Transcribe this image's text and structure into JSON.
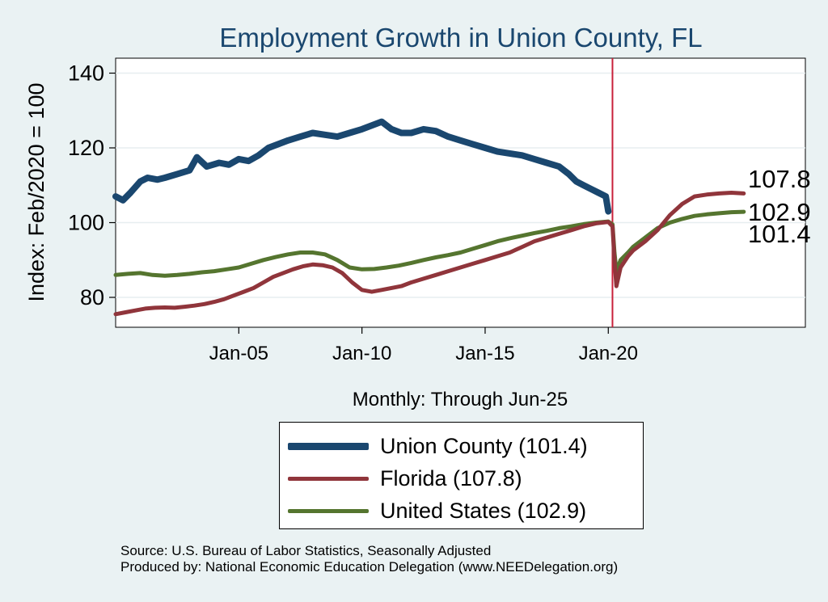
{
  "chart_data": {
    "type": "line",
    "title": "Employment Growth in Union  County, FL",
    "xlabel": "Monthly: Through Jun-25",
    "ylabel": "Index: Feb/2020 = 100",
    "xlim": [
      2000.0,
      2028.0
    ],
    "ylim": [
      72,
      144
    ],
    "xticks": [
      {
        "x": 2005.0,
        "label": "Jan-05"
      },
      {
        "x": 2010.0,
        "label": "Jan-10"
      },
      {
        "x": 2015.0,
        "label": "Jan-15"
      },
      {
        "x": 2020.0,
        "label": "Jan-20"
      }
    ],
    "yticks": [
      80,
      100,
      120,
      140
    ],
    "grid": true,
    "reference_line": {
      "x": 2020.17,
      "color": "#c8203a"
    },
    "series": [
      {
        "name": "Union  County",
        "legend_label": "Union  County (101.4)",
        "end_label": "101.4",
        "color": "#1a476f",
        "width": 8,
        "points": [
          [
            2000.0,
            107
          ],
          [
            2000.3,
            106
          ],
          [
            2000.6,
            108
          ],
          [
            2001.0,
            111
          ],
          [
            2001.3,
            112
          ],
          [
            2001.7,
            111.5
          ],
          [
            2002.0,
            112
          ],
          [
            2002.5,
            113
          ],
          [
            2003.0,
            114
          ],
          [
            2003.3,
            117.5
          ],
          [
            2003.7,
            115
          ],
          [
            2004.2,
            116
          ],
          [
            2004.6,
            115.5
          ],
          [
            2005.0,
            117
          ],
          [
            2005.4,
            116.5
          ],
          [
            2005.8,
            118
          ],
          [
            2006.2,
            120
          ],
          [
            2006.6,
            121
          ],
          [
            2007.0,
            122
          ],
          [
            2007.5,
            123
          ],
          [
            2008.0,
            124
          ],
          [
            2008.5,
            123.5
          ],
          [
            2009.0,
            123
          ],
          [
            2009.5,
            124
          ],
          [
            2010.0,
            125
          ],
          [
            2010.4,
            126
          ],
          [
            2010.8,
            127
          ],
          [
            2011.2,
            125
          ],
          [
            2011.6,
            124
          ],
          [
            2012.0,
            124
          ],
          [
            2012.5,
            125
          ],
          [
            2013.0,
            124.5
          ],
          [
            2013.5,
            123
          ],
          [
            2014.0,
            122
          ],
          [
            2014.5,
            121
          ],
          [
            2015.0,
            120
          ],
          [
            2015.5,
            119
          ],
          [
            2016.0,
            118.5
          ],
          [
            2016.5,
            118
          ],
          [
            2017.0,
            117
          ],
          [
            2017.5,
            116
          ],
          [
            2018.0,
            115
          ],
          [
            2018.4,
            113
          ],
          [
            2018.7,
            111
          ],
          [
            2019.0,
            110
          ],
          [
            2019.3,
            109
          ],
          [
            2019.6,
            108
          ],
          [
            2019.9,
            107
          ],
          [
            2020.0,
            103
          ]
        ],
        "end_value": 101.4
      },
      {
        "name": "Florida",
        "legend_label": "Florida (107.8)",
        "end_label": "107.8",
        "color": "#90353b",
        "width": 5,
        "points": [
          [
            2000.0,
            75.5
          ],
          [
            2000.4,
            76
          ],
          [
            2000.8,
            76.5
          ],
          [
            2001.2,
            77
          ],
          [
            2001.6,
            77.2
          ],
          [
            2002.0,
            77.3
          ],
          [
            2002.4,
            77.2
          ],
          [
            2002.8,
            77.5
          ],
          [
            2003.2,
            77.8
          ],
          [
            2003.6,
            78.2
          ],
          [
            2004.0,
            78.8
          ],
          [
            2004.4,
            79.5
          ],
          [
            2004.8,
            80.5
          ],
          [
            2005.2,
            81.5
          ],
          [
            2005.6,
            82.5
          ],
          [
            2006.0,
            84
          ],
          [
            2006.4,
            85.5
          ],
          [
            2006.8,
            86.5
          ],
          [
            2007.2,
            87.5
          ],
          [
            2007.6,
            88.3
          ],
          [
            2008.0,
            88.8
          ],
          [
            2008.4,
            88.6
          ],
          [
            2008.8,
            88
          ],
          [
            2009.2,
            86.5
          ],
          [
            2009.6,
            84
          ],
          [
            2010.0,
            82
          ],
          [
            2010.4,
            81.5
          ],
          [
            2010.8,
            82
          ],
          [
            2011.2,
            82.5
          ],
          [
            2011.6,
            83
          ],
          [
            2012.0,
            84
          ],
          [
            2012.5,
            85
          ],
          [
            2013.0,
            86
          ],
          [
            2013.5,
            87
          ],
          [
            2014.0,
            88
          ],
          [
            2014.5,
            89
          ],
          [
            2015.0,
            90
          ],
          [
            2015.5,
            91
          ],
          [
            2016.0,
            92
          ],
          [
            2016.5,
            93.5
          ],
          [
            2017.0,
            95
          ],
          [
            2017.5,
            96
          ],
          [
            2018.0,
            97
          ],
          [
            2018.5,
            98
          ],
          [
            2019.0,
            99
          ],
          [
            2019.5,
            99.8
          ],
          [
            2020.0,
            100.2
          ],
          [
            2020.17,
            99
          ],
          [
            2020.25,
            90
          ],
          [
            2020.33,
            83
          ],
          [
            2020.5,
            88
          ],
          [
            2020.8,
            91
          ],
          [
            2021.0,
            92.5
          ],
          [
            2021.5,
            95
          ],
          [
            2022.0,
            98
          ],
          [
            2022.5,
            102
          ],
          [
            2023.0,
            105
          ],
          [
            2023.5,
            107
          ],
          [
            2024.0,
            107.5
          ],
          [
            2024.5,
            107.8
          ],
          [
            2025.0,
            108
          ],
          [
            2025.5,
            107.8
          ]
        ],
        "end_value": 107.8
      },
      {
        "name": "United States",
        "legend_label": "United States (102.9)",
        "end_label": "102.9",
        "color": "#55752f",
        "width": 5,
        "points": [
          [
            2000.0,
            86
          ],
          [
            2000.5,
            86.3
          ],
          [
            2001.0,
            86.5
          ],
          [
            2001.5,
            86
          ],
          [
            2002.0,
            85.8
          ],
          [
            2002.5,
            86
          ],
          [
            2003.0,
            86.3
          ],
          [
            2003.5,
            86.7
          ],
          [
            2004.0,
            87
          ],
          [
            2004.5,
            87.5
          ],
          [
            2005.0,
            88
          ],
          [
            2005.5,
            89
          ],
          [
            2006.0,
            90
          ],
          [
            2006.5,
            90.8
          ],
          [
            2007.0,
            91.5
          ],
          [
            2007.5,
            92
          ],
          [
            2008.0,
            92
          ],
          [
            2008.5,
            91.5
          ],
          [
            2009.0,
            90
          ],
          [
            2009.5,
            88
          ],
          [
            2010.0,
            87.5
          ],
          [
            2010.5,
            87.6
          ],
          [
            2011.0,
            88
          ],
          [
            2011.5,
            88.5
          ],
          [
            2012.0,
            89.2
          ],
          [
            2012.5,
            90
          ],
          [
            2013.0,
            90.7
          ],
          [
            2013.5,
            91.3
          ],
          [
            2014.0,
            92
          ],
          [
            2014.5,
            93
          ],
          [
            2015.0,
            94
          ],
          [
            2015.5,
            95
          ],
          [
            2016.0,
            95.8
          ],
          [
            2016.5,
            96.5
          ],
          [
            2017.0,
            97.2
          ],
          [
            2017.5,
            97.8
          ],
          [
            2018.0,
            98.5
          ],
          [
            2018.5,
            99
          ],
          [
            2019.0,
            99.6
          ],
          [
            2019.5,
            100
          ],
          [
            2020.0,
            100.3
          ],
          [
            2020.17,
            99.5
          ],
          [
            2020.25,
            92
          ],
          [
            2020.33,
            87
          ],
          [
            2020.5,
            90
          ],
          [
            2020.8,
            92
          ],
          [
            2021.0,
            93.5
          ],
          [
            2021.5,
            96
          ],
          [
            2022.0,
            98.5
          ],
          [
            2022.5,
            100
          ],
          [
            2023.0,
            101
          ],
          [
            2023.5,
            101.8
          ],
          [
            2024.0,
            102.2
          ],
          [
            2024.5,
            102.5
          ],
          [
            2025.0,
            102.8
          ],
          [
            2025.5,
            102.9
          ]
        ],
        "end_value": 102.9
      }
    ],
    "legend_position": "bottom",
    "source_lines": [
      "Source: U.S. Bureau of Labor Statistics, Seasonally Adjusted",
      "Produced by: National Economic Education Delegation (www.NEEDelegation.org)"
    ]
  }
}
